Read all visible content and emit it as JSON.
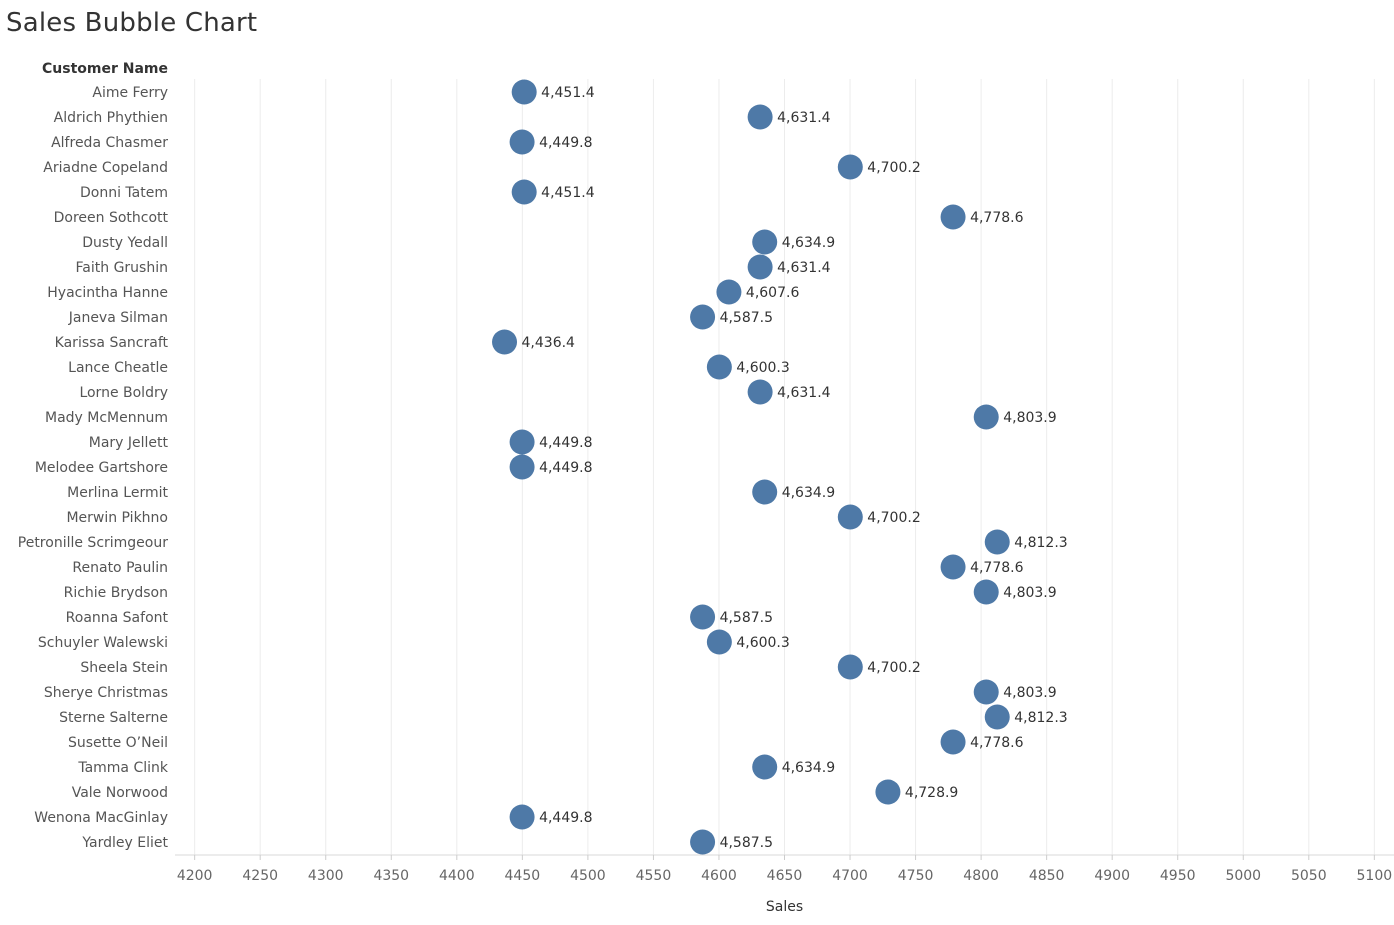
{
  "title": "Sales Bubble Chart",
  "chart_data": {
    "type": "scatter",
    "title": "Sales Bubble Chart",
    "row_header": "Customer Name",
    "xlabel": "Sales",
    "xlim": [
      4185,
      5115
    ],
    "xticks": [
      4200,
      4250,
      4300,
      4350,
      4400,
      4450,
      4500,
      4550,
      4600,
      4650,
      4700,
      4750,
      4800,
      4850,
      4900,
      4950,
      5000,
      5050,
      5100
    ],
    "grid": "vertical",
    "marker_color": "#4e79a7",
    "categories": [
      "Aime Ferry",
      "Aldrich Phythien",
      "Alfreda Chasmer",
      "Ariadne Copeland",
      "Donni Tatem",
      "Doreen Sothcott",
      "Dusty Yedall",
      "Faith Grushin",
      "Hyacintha Hanne",
      "Janeva Silman",
      "Karissa Sancraft",
      "Lance Cheatle",
      "Lorne Boldry",
      "Mady McMennum",
      "Mary Jellett",
      "Melodee Gartshore",
      "Merlina Lermit",
      "Merwin Pikhno",
      "Petronille Scrimgeour",
      "Renato Paulin",
      "Richie Brydson",
      "Roanna Safont",
      "Schuyler Walewski",
      "Sheela Stein",
      "Sherye Christmas",
      "Sterne Salterne",
      "Susette O’Neil",
      "Tamma Clink",
      "Vale Norwood",
      "Wenona MacGinlay",
      "Yardley Eliet"
    ],
    "values": [
      4451.4,
      4631.4,
      4449.8,
      4700.2,
      4451.4,
      4778.6,
      4634.9,
      4631.4,
      4607.6,
      4587.5,
      4436.4,
      4600.3,
      4631.4,
      4803.9,
      4449.8,
      4449.8,
      4634.9,
      4700.2,
      4812.3,
      4778.6,
      4803.9,
      4587.5,
      4600.3,
      4700.2,
      4803.9,
      4812.3,
      4778.6,
      4634.9,
      4728.9,
      4449.8,
      4587.5
    ],
    "data_labels": [
      "4,451.4",
      "4,631.4",
      "4,449.8",
      "4,700.2",
      "4,451.4",
      "4,778.6",
      "4,634.9",
      "4,631.4",
      "4,607.6",
      "4,587.5",
      "4,436.4",
      "4,600.3",
      "4,631.4",
      "4,803.9",
      "4,449.8",
      "4,449.8",
      "4,634.9",
      "4,700.2",
      "4,812.3",
      "4,778.6",
      "4,803.9",
      "4,587.5",
      "4,600.3",
      "4,700.2",
      "4,803.9",
      "4,812.3",
      "4,778.6",
      "4,634.9",
      "4,728.9",
      "4,449.8",
      "4,587.5"
    ]
  }
}
